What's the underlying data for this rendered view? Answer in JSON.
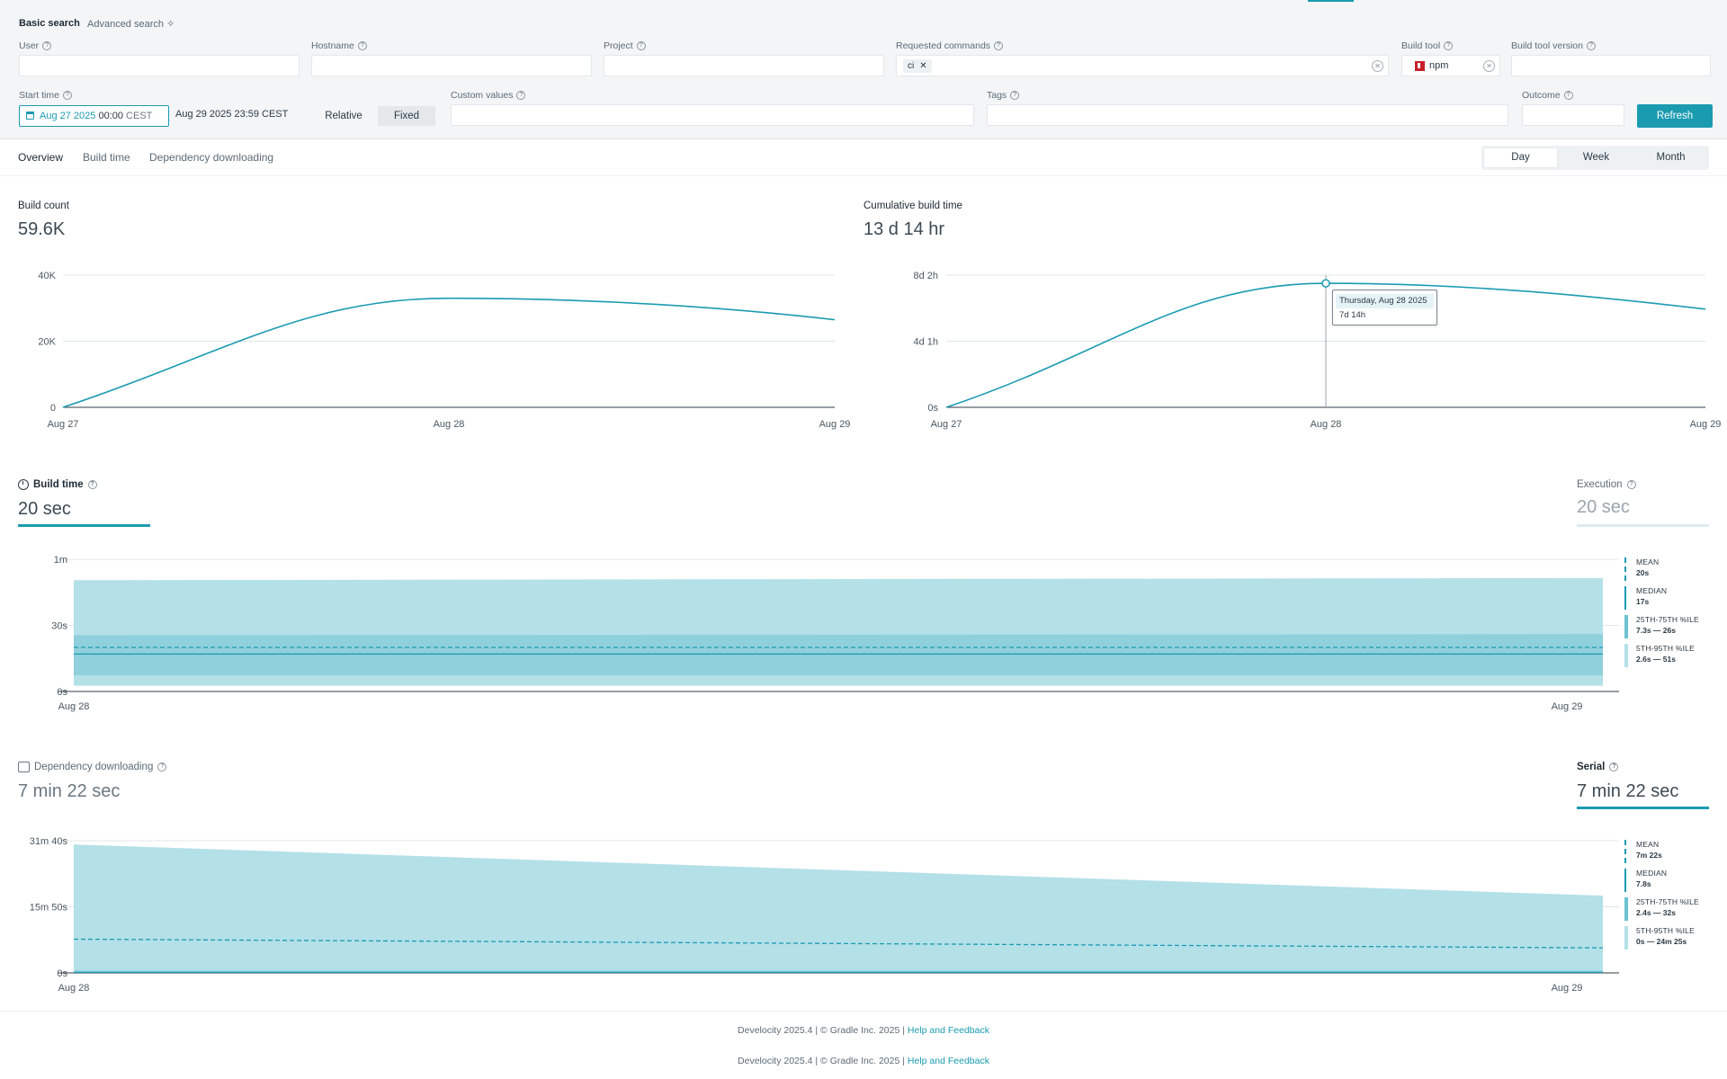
{
  "search": {
    "tabs": {
      "basic": "Basic search",
      "advanced": "Advanced search"
    },
    "labels": {
      "user": "User",
      "hostname": "Hostname",
      "project": "Project",
      "requested_commands": "Requested commands",
      "build_tool": "Build tool",
      "build_tool_version": "Build tool version",
      "start_time": "Start time",
      "custom_values": "Custom values",
      "tags": "Tags",
      "outcome": "Outcome"
    },
    "requested_commands_chip": "ci",
    "build_tool_value": "npm",
    "start_date": "Aug 27 2025",
    "start_time": "00:00",
    "start_tz": "CEST",
    "end": "Aug 29 2025 23:59 CEST",
    "range_modes": [
      "Relative",
      "Fixed"
    ],
    "refresh_label": "Refresh"
  },
  "view_tabs": [
    "Overview",
    "Build time",
    "Dependency downloading"
  ],
  "period_options": [
    "Day",
    "Week",
    "Month"
  ],
  "build_count": {
    "title": "Build count",
    "value": "59.6K"
  },
  "cumulative": {
    "title": "Cumulative build time",
    "value": "13 d 14 hr",
    "tooltip_date": "Thursday, Aug 28 2025",
    "tooltip_value": "7d 14h"
  },
  "build_time": {
    "title": "Build time",
    "value": "20 sec",
    "side_title": "Execution",
    "side_value": "20 sec",
    "legend": [
      {
        "name": "MEAN",
        "value": "20s"
      },
      {
        "name": "MEDIAN",
        "value": "17s"
      },
      {
        "name": "25TH-75TH %ILE",
        "value": "7.3s — 26s"
      },
      {
        "name": "5TH-95TH %ILE",
        "value": "2.6s — 51s"
      }
    ]
  },
  "dependency": {
    "title": "Dependency downloading",
    "value": "7 min 22 sec",
    "side_title": "Serial",
    "side_value": "7 min 22 sec",
    "legend": [
      {
        "name": "MEAN",
        "value": "7m 22s"
      },
      {
        "name": "MEDIAN",
        "value": "7.8s"
      },
      {
        "name": "25TH-75TH %ILE",
        "value": "2.4s — 32s"
      },
      {
        "name": "5TH-95TH %ILE",
        "value": "0s — 24m 25s"
      }
    ]
  },
  "footer": {
    "text": "Develocity 2025.4  |  © Gradle Inc. 2025  |",
    "link": "Help and Feedback"
  },
  "colors": {
    "accent": "#1a9bb0",
    "band_light": "#b4e0e8",
    "band_mid": "#8fd0dc"
  },
  "chart_data": [
    {
      "type": "line",
      "title": "Build count",
      "x": [
        "Aug 27",
        "Aug 28",
        "Aug 29"
      ],
      "series": [
        {
          "values": [
            0,
            33000,
            26500
          ]
        }
      ],
      "yticks": [
        "0",
        "20K",
        "40K"
      ],
      "ylim": [
        0,
        40000
      ]
    },
    {
      "type": "line",
      "title": "Cumulative build time",
      "x": [
        "Aug 27",
        "Aug 28",
        "Aug 29"
      ],
      "series": [
        {
          "values": [
            0,
            7.58,
            6.0
          ]
        }
      ],
      "y_units": "days",
      "yticks": [
        "0s",
        "4d 1h",
        "8d 2h"
      ],
      "ylim": [
        0,
        8.08
      ]
    },
    {
      "type": "area",
      "title": "Build time",
      "x": [
        "Aug 28",
        "Aug 29"
      ],
      "y_units": "seconds",
      "yticks": [
        "0s",
        "30s",
        "1m"
      ],
      "ylim": [
        0,
        60
      ],
      "bands": {
        "p5": [
          2.6,
          2.6
        ],
        "p95": [
          50.5,
          51.5
        ],
        "p25": [
          7.3,
          7.3
        ],
        "p75": [
          25.5,
          26
        ],
        "median": [
          17,
          17
        ],
        "mean": [
          20,
          20
        ]
      }
    },
    {
      "type": "area",
      "title": "Dependency downloading",
      "x": [
        "Aug 28",
        "Aug 29"
      ],
      "y_units": "seconds",
      "yticks": [
        "0s",
        "15m 50s",
        "31m 40s"
      ],
      "ylim": [
        0,
        1900
      ],
      "bands": {
        "p5": [
          0,
          0
        ],
        "p95": [
          1845,
          1110
        ],
        "p25": [
          2.4,
          2.4
        ],
        "p75": [
          32,
          32
        ],
        "median": [
          7.8,
          7.8
        ],
        "mean": [
          485,
          360
        ]
      }
    }
  ]
}
